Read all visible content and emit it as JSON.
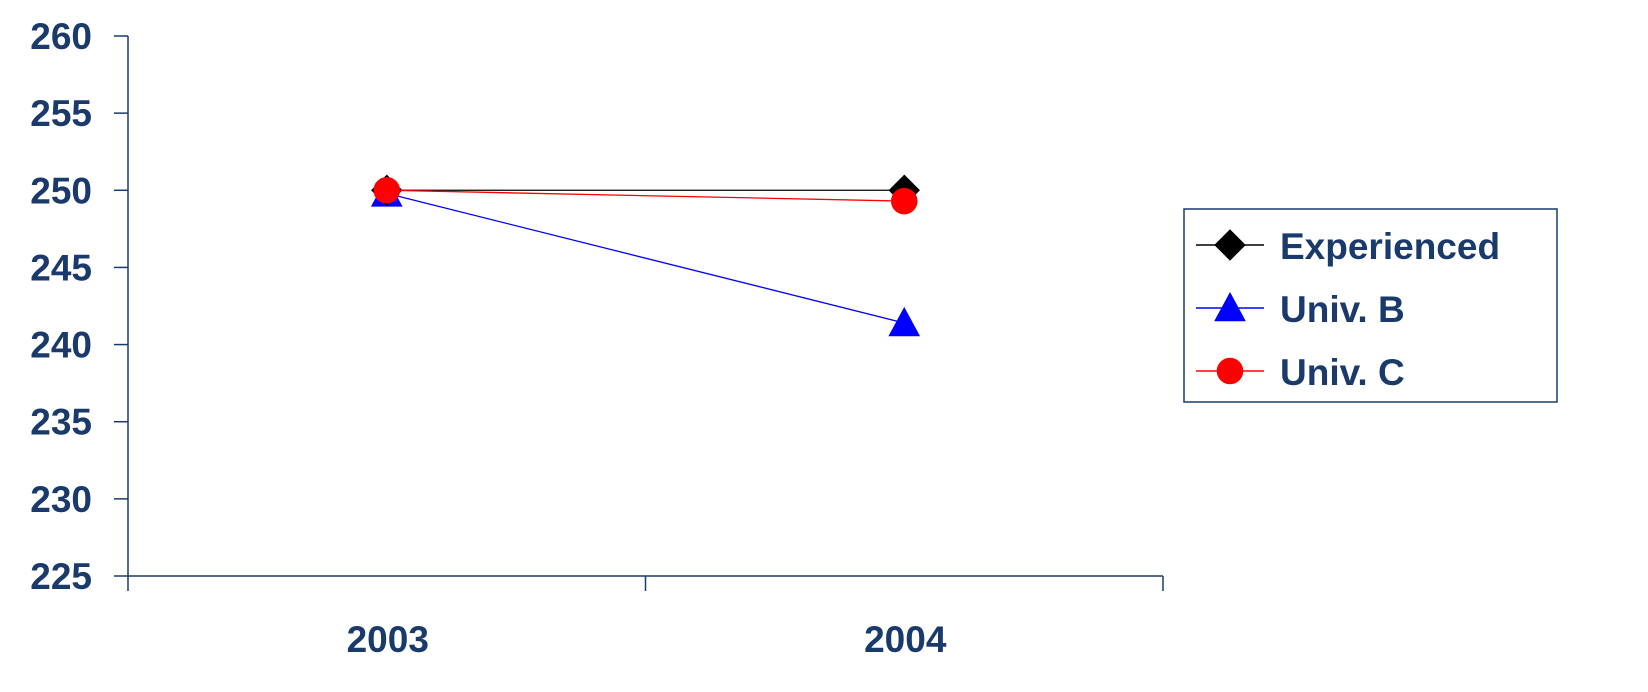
{
  "chart_data": {
    "type": "line",
    "title": "",
    "xlabel": "",
    "ylabel": "",
    "categories": [
      "2003",
      "2004"
    ],
    "ylim": [
      225,
      260
    ],
    "yticks": [
      225,
      230,
      235,
      240,
      245,
      250,
      255,
      260
    ],
    "grid": false,
    "legend_position": "right",
    "series": [
      {
        "name": "Experienced",
        "values": [
          250,
          250
        ],
        "color": "#000000",
        "marker": "diamond"
      },
      {
        "name": "Univ. B",
        "values": [
          249.8,
          241.4
        ],
        "color": "#0000ff",
        "marker": "triangle"
      },
      {
        "name": "Univ. C",
        "values": [
          250,
          249.3
        ],
        "color": "#ff0000",
        "marker": "circle"
      }
    ],
    "colors": {
      "axis": "#1a3a6b",
      "label": "#1a3a6b"
    }
  }
}
